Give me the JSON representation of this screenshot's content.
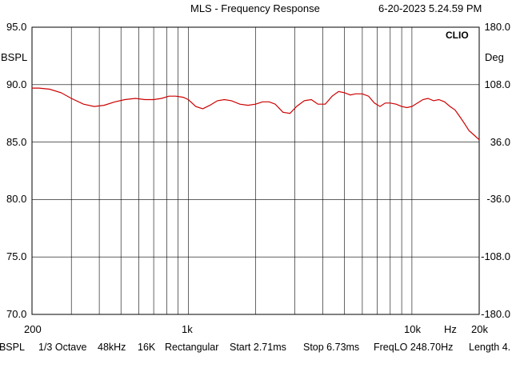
{
  "header": {
    "title": "MLS - Frequency Response",
    "timestamp": "6-20-2023 5.24.59 PM"
  },
  "brand": "CLIO",
  "left_unit": "BSPL",
  "right_unit": "Deg",
  "x_ticks": [
    "200",
    "1k",
    "10k",
    "Hz",
    "20k"
  ],
  "left_ticks": [
    "95.0",
    "90.0",
    "85.0",
    "80.0",
    "75.0",
    "70.0"
  ],
  "right_ticks": [
    "180.0",
    "108.0",
    "36.0",
    "-36.0",
    "-108.0",
    "-180.0"
  ],
  "footer": {
    "unit": "dBSPL",
    "smoothing": "1/3 Octave",
    "sample_rate": "48kHz",
    "fft_size": "16K",
    "window": "Rectangular",
    "start": "Start 2.71ms",
    "stop": "Stop 6.73ms",
    "freq_lo": "FreqLO 248.70Hz",
    "length": "Length 4."
  },
  "colors": {
    "curve": "#cc0000",
    "grid": "#000000",
    "background": "#ffffff"
  },
  "chart_data": {
    "type": "line",
    "title": "MLS - Frequency Response",
    "xlabel": "Hz",
    "ylabel": "BSPL",
    "y2label": "Deg",
    "x_scale": "log",
    "xlim": [
      200,
      20000
    ],
    "ylim": [
      70,
      95
    ],
    "y2lim": [
      -180,
      180
    ],
    "grid": true,
    "series": [
      {
        "x": [
          200,
          215,
          240,
          270,
          300,
          340,
          380,
          420,
          470,
          520,
          580,
          640,
          700,
          760,
          820,
          880,
          950,
          1000,
          1080,
          1160,
          1250,
          1350,
          1450,
          1560,
          1700,
          1850,
          2000,
          2150,
          2300,
          2450,
          2650,
          2850,
          3050,
          3300,
          3550,
          3800,
          4100,
          4400,
          4700,
          5000,
          5300,
          5600,
          6000,
          6400,
          6800,
          7200,
          7600,
          8000,
          8500,
          9000,
          9500,
          10000,
          10600,
          11200,
          11800,
          12500,
          13200,
          14000,
          14800,
          15600,
          16400,
          17200,
          18000,
          19000,
          20000
        ],
        "y": [
          89.7,
          89.7,
          89.6,
          89.3,
          88.8,
          88.3,
          88.1,
          88.2,
          88.5,
          88.7,
          88.8,
          88.7,
          88.7,
          88.8,
          89.0,
          89.0,
          88.9,
          88.7,
          88.1,
          87.9,
          88.2,
          88.6,
          88.7,
          88.6,
          88.3,
          88.2,
          88.3,
          88.5,
          88.5,
          88.3,
          87.6,
          87.5,
          88.1,
          88.6,
          88.7,
          88.3,
          88.3,
          89.0,
          89.4,
          89.3,
          89.1,
          89.2,
          89.2,
          89.0,
          88.4,
          88.1,
          88.4,
          88.4,
          88.3,
          88.1,
          88.0,
          88.1,
          88.4,
          88.7,
          88.8,
          88.6,
          88.7,
          88.5,
          88.1,
          87.8,
          87.2,
          86.6,
          86.0,
          85.6,
          85.2
        ]
      }
    ]
  }
}
